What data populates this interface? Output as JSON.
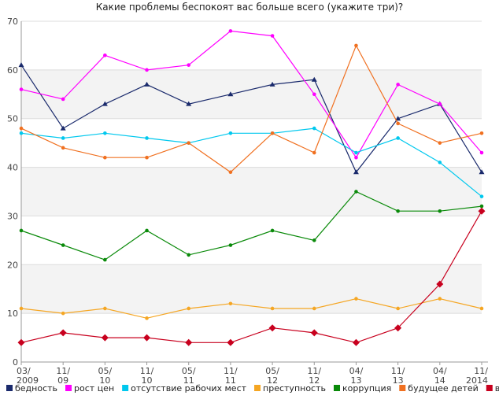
{
  "chart_data": {
    "type": "line",
    "title": "Какие проблемы беспокоят вас больше всего (укажите три)?",
    "categories": [
      [
        "03/",
        "2009"
      ],
      [
        "11/",
        "09"
      ],
      [
        "05/",
        "10"
      ],
      [
        "11/",
        "10"
      ],
      [
        "05/",
        "11"
      ],
      [
        "11/",
        "11"
      ],
      [
        "05/",
        "12"
      ],
      [
        "11/",
        "12"
      ],
      [
        "04/",
        "13"
      ],
      [
        "11/",
        "13"
      ],
      [
        "04/",
        "14"
      ],
      [
        "11/",
        "2014"
      ]
    ],
    "ylim": [
      0,
      70
    ],
    "yticks": [
      0,
      10,
      20,
      30,
      40,
      50,
      60,
      70
    ],
    "grid": true,
    "legend_position": "bottom",
    "series": [
      {
        "name": "бедность",
        "color": "#1a2a6c",
        "marker": "triangle",
        "values": [
          61,
          48,
          53,
          57,
          53,
          55,
          57,
          58,
          39,
          50,
          53,
          39
        ]
      },
      {
        "name": "рост цен",
        "color": "#ff00ff",
        "marker": "circle",
        "values": [
          56,
          54,
          63,
          60,
          61,
          68,
          67,
          55,
          42,
          57,
          53,
          43
        ]
      },
      {
        "name": "отсутствие рабочих мест",
        "color": "#00c8ee",
        "marker": "circle",
        "values": [
          47,
          46,
          47,
          46,
          45,
          47,
          47,
          48,
          43,
          46,
          41,
          34
        ]
      },
      {
        "name": "преступность",
        "color": "#f5a623",
        "marker": "circle",
        "values": [
          11,
          10,
          11,
          9,
          11,
          12,
          11,
          11,
          13,
          11,
          13,
          11
        ]
      },
      {
        "name": "коррупция",
        "color": "#0a8a0a",
        "marker": "circle",
        "values": [
          27,
          24,
          21,
          27,
          22,
          24,
          27,
          25,
          35,
          31,
          31,
          32
        ]
      },
      {
        "name": "будущее детей",
        "color": "#f07020",
        "marker": "circle",
        "values": [
          48,
          44,
          42,
          42,
          45,
          39,
          47,
          43,
          65,
          49,
          45,
          47
        ]
      },
      {
        "name": "война в регионе",
        "color": "#c8001e",
        "marker": "diamond",
        "values": [
          4,
          6,
          5,
          5,
          4,
          4,
          7,
          6,
          4,
          7,
          16,
          31
        ]
      }
    ]
  }
}
